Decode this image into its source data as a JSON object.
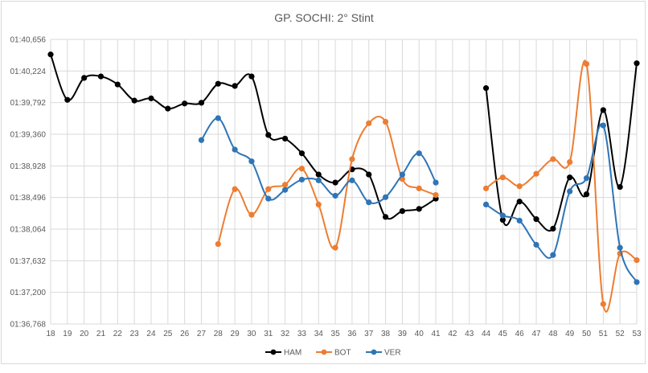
{
  "chart_data": {
    "type": "line",
    "title": "GP.  SOCHI: 2° Stint",
    "xlabel": "",
    "ylabel": "",
    "x": [
      18,
      19,
      20,
      21,
      22,
      23,
      24,
      25,
      26,
      27,
      28,
      29,
      30,
      31,
      32,
      33,
      34,
      35,
      36,
      37,
      38,
      39,
      40,
      41,
      42,
      43,
      44,
      45,
      46,
      47,
      48,
      49,
      50,
      51,
      52,
      53
    ],
    "y_ticks": [
      "01:40,656",
      "01:40,224",
      "01:39,792",
      "01:39,360",
      "01:38,928",
      "01:38,496",
      "01:38,064",
      "01:37,632",
      "01:37,200",
      "01:36,768"
    ],
    "y_tick_values": [
      100.656,
      100.224,
      99.792,
      99.36,
      98.928,
      98.496,
      98.064,
      97.632,
      97.2,
      96.768
    ],
    "ylim": [
      96.768,
      100.656
    ],
    "y_unit": "seconds (lap time, shown as mm:ss,ms)",
    "grid": true,
    "smoothed": true,
    "legend_position": "bottom",
    "series": [
      {
        "name": "HAM",
        "color": "#000000",
        "values": [
          100.45,
          99.83,
          100.13,
          100.15,
          100.04,
          99.82,
          99.85,
          99.71,
          99.78,
          99.79,
          100.05,
          100.02,
          100.15,
          99.35,
          99.3,
          99.1,
          98.81,
          98.7,
          98.88,
          98.81,
          98.23,
          98.31,
          98.34,
          98.48,
          null,
          null,
          99.99,
          98.19,
          98.44,
          98.2,
          98.07,
          98.77,
          98.54,
          99.69,
          98.64,
          100.33
        ]
      },
      {
        "name": "BOT",
        "color": "#ED7D31",
        "values": [
          null,
          null,
          null,
          null,
          null,
          null,
          null,
          null,
          null,
          null,
          97.86,
          98.61,
          98.26,
          98.61,
          98.67,
          98.89,
          98.4,
          97.81,
          99.02,
          99.51,
          99.53,
          98.75,
          98.62,
          98.53,
          null,
          null,
          98.62,
          98.77,
          98.65,
          98.82,
          99.02,
          98.98,
          100.32,
          97.04,
          97.73,
          97.64
        ]
      },
      {
        "name": "VER",
        "color": "#2E75B6",
        "values": [
          null,
          null,
          null,
          null,
          null,
          null,
          null,
          null,
          null,
          99.28,
          99.58,
          99.15,
          98.99,
          98.48,
          98.6,
          98.74,
          98.73,
          98.52,
          98.73,
          98.43,
          98.5,
          98.81,
          99.1,
          98.7,
          null,
          null,
          98.4,
          98.25,
          98.18,
          97.85,
          97.71,
          98.58,
          98.76,
          99.48,
          97.81,
          97.34
        ]
      }
    ]
  }
}
